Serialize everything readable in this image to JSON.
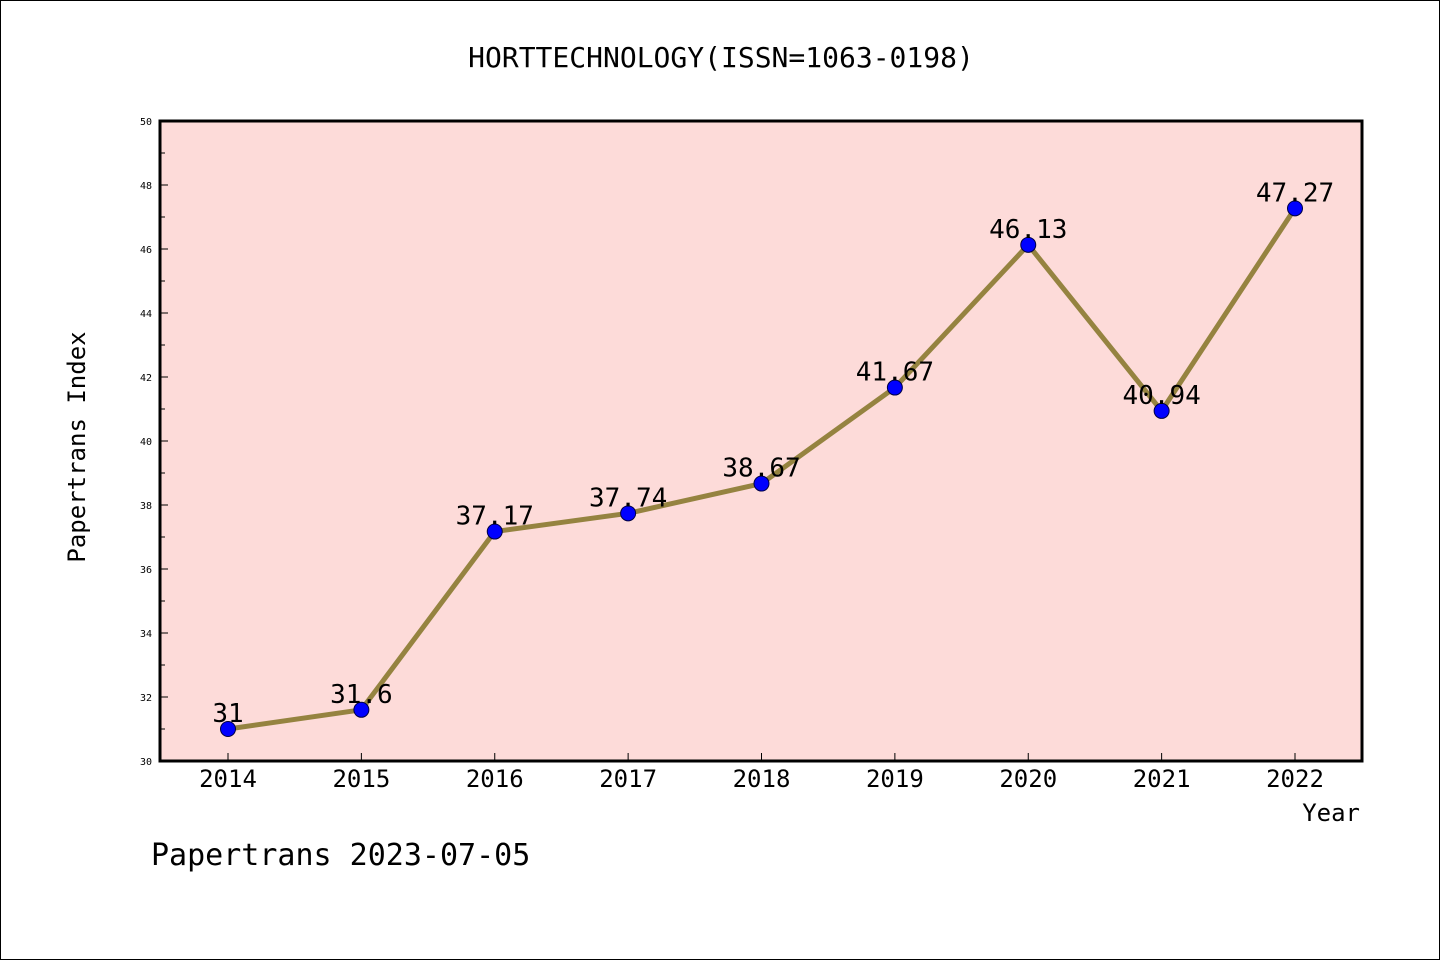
{
  "title": "HORTTECHNOLOGY(ISSN=1063-0198)",
  "footer": "Papertrans 2023-07-05",
  "chart_data": {
    "type": "line",
    "title": "HORTTECHNOLOGY(ISSN=1063-0198)",
    "xlabel": "Year",
    "ylabel": "Papertrans Index",
    "categories": [
      "2014",
      "2015",
      "2016",
      "2017",
      "2018",
      "2019",
      "2020",
      "2021",
      "2022"
    ],
    "series": [
      {
        "values": [
          31,
          31.6,
          37.17,
          37.74,
          38.67,
          41.67,
          46.13,
          40.94,
          47.27
        ],
        "labels": [
          "31",
          "31.6",
          "37.17",
          "37.74",
          "38.67",
          "41.67",
          "46.13",
          "40.94",
          "47.27"
        ]
      }
    ],
    "ylim": [
      30,
      50
    ],
    "yticks": [
      "30",
      "32",
      "34",
      "36",
      "38",
      "40",
      "42",
      "44",
      "46",
      "48",
      "50"
    ],
    "grid": false,
    "colors": {
      "plot_background": "#fddbd9",
      "line": "#958340",
      "marker": "#0000ff"
    }
  }
}
